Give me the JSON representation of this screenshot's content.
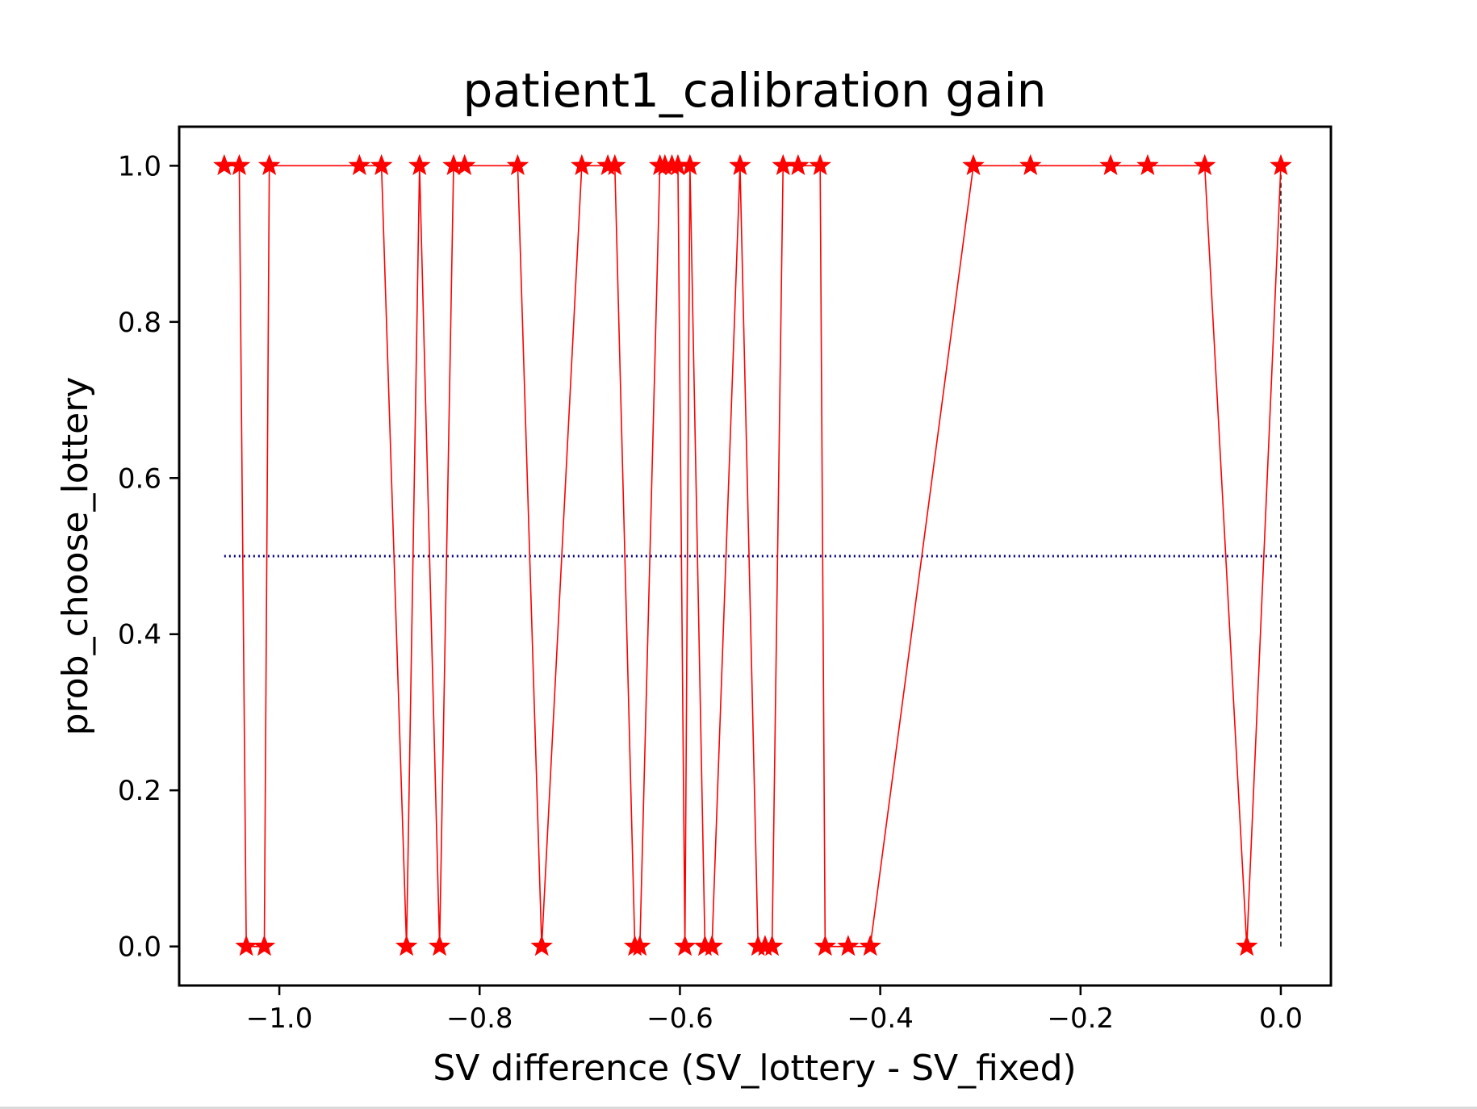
{
  "chart_data": {
    "type": "line",
    "title": "patient1_calibration gain",
    "xlabel": "SV difference (SV_lottery - SV_fixed)",
    "ylabel": "prob_choose_lottery",
    "xlim": [
      -1.1,
      0.05
    ],
    "ylim": [
      -0.05,
      1.05
    ],
    "xticks": [
      -1.0,
      -0.8,
      -0.6,
      -0.4,
      -0.2,
      0.0
    ],
    "xtick_labels": [
      "−1.0",
      "−0.8",
      "−0.6",
      "−0.4",
      "−0.2",
      "0.0"
    ],
    "yticks": [
      0.0,
      0.2,
      0.4,
      0.6,
      0.8,
      1.0
    ],
    "ytick_labels": [
      "0.0",
      "0.2",
      "0.4",
      "0.6",
      "0.8",
      "1.0"
    ],
    "grid": false,
    "series": [
      {
        "marker": "star",
        "color": "#ff0000",
        "x": [
          -1.055,
          -1.04,
          -1.033,
          -1.015,
          -1.01,
          -0.92,
          -0.898,
          -0.873,
          -0.86,
          -0.84,
          -0.826,
          -0.815,
          -0.762,
          -0.738,
          -0.698,
          -0.672,
          -0.665,
          -0.645,
          -0.64,
          -0.62,
          -0.615,
          -0.608,
          -0.602,
          -0.595,
          -0.59,
          -0.575,
          -0.568,
          -0.54,
          -0.522,
          -0.515,
          -0.508,
          -0.497,
          -0.482,
          -0.46,
          -0.455,
          -0.432,
          -0.41,
          -0.307,
          -0.25,
          -0.17,
          -0.133,
          -0.076,
          -0.034,
          0.0
        ],
        "y": [
          1,
          1,
          0,
          0,
          1,
          1,
          1,
          0,
          1,
          0,
          1,
          1,
          1,
          0,
          1,
          1,
          1,
          0,
          0,
          1,
          1,
          1,
          1,
          0,
          1,
          0,
          0,
          1,
          0,
          0,
          0,
          1,
          1,
          1,
          0,
          0,
          0,
          1,
          1,
          1,
          1,
          1,
          0,
          1
        ]
      }
    ],
    "reference_lines": [
      {
        "orientation": "horizontal",
        "y": 0.5,
        "x_from": -1.055,
        "x_to": 0.0,
        "color": "#000080",
        "style": "dotted"
      },
      {
        "orientation": "vertical",
        "x": 0.0,
        "y_from": 0.0,
        "y_to": 1.0,
        "color": "#000000",
        "style": "dashed"
      }
    ]
  }
}
